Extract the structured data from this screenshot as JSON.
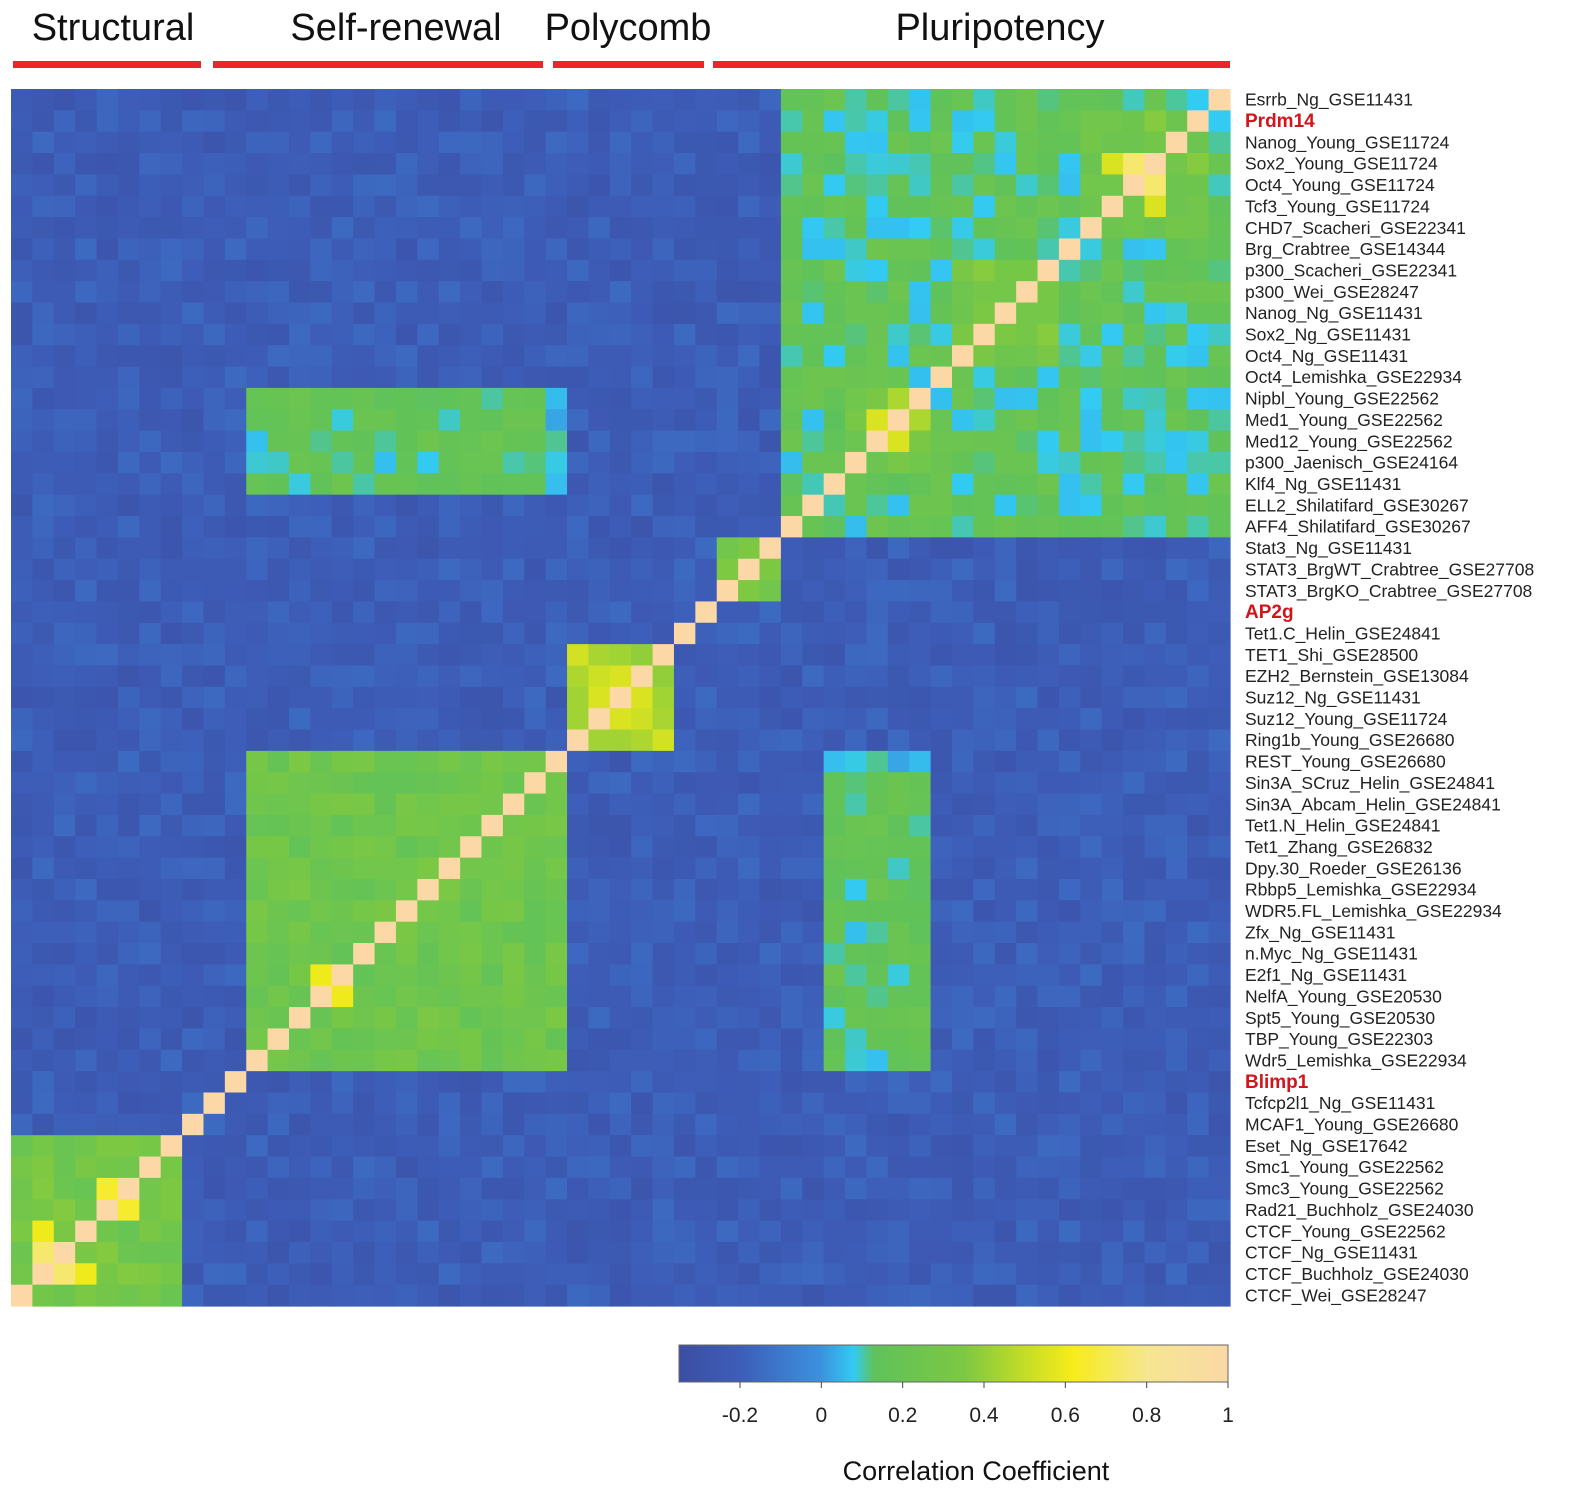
{
  "chart_data": {
    "type": "heatmap",
    "title": "",
    "groups": [
      {
        "label": "Structural",
        "color": "#e8262b"
      },
      {
        "label": "Self-renewal",
        "color": "#e8262b"
      },
      {
        "label": "Polycomb",
        "color": "#e8262b"
      },
      {
        "label": "Pluripotency",
        "color": "#e8262b"
      }
    ],
    "rows": [
      {
        "label": "Esrrb_Ng_GSE11431",
        "highlight": false
      },
      {
        "label": "Prdm14",
        "highlight": true
      },
      {
        "label": "Nanog_Young_GSE11724",
        "highlight": false
      },
      {
        "label": "Sox2_Young_GSE11724",
        "highlight": false
      },
      {
        "label": "Oct4_Young_GSE11724",
        "highlight": false
      },
      {
        "label": "Tcf3_Young_GSE11724",
        "highlight": false
      },
      {
        "label": "CHD7_Scacheri_GSE22341",
        "highlight": false
      },
      {
        "label": "Brg_Crabtree_GSE14344",
        "highlight": false
      },
      {
        "label": "p300_Scacheri_GSE22341",
        "highlight": false
      },
      {
        "label": "p300_Wei_GSE28247",
        "highlight": false
      },
      {
        "label": "Nanog_Ng_GSE11431",
        "highlight": false
      },
      {
        "label": "Sox2_Ng_GSE11431",
        "highlight": false
      },
      {
        "label": "Oct4_Ng_GSE11431",
        "highlight": false
      },
      {
        "label": "Oct4_Lemishka_GSE22934",
        "highlight": false
      },
      {
        "label": "Nipbl_Young_GSE22562",
        "highlight": false
      },
      {
        "label": "Med1_Young_GSE22562",
        "highlight": false
      },
      {
        "label": "Med12_Young_GSE22562",
        "highlight": false
      },
      {
        "label": "p300_Jaenisch_GSE24164",
        "highlight": false
      },
      {
        "label": "Klf4_Ng_GSE11431",
        "highlight": false
      },
      {
        "label": "ELL2_Shilatifard_GSE30267",
        "highlight": false
      },
      {
        "label": "AFF4_Shilatifard_GSE30267",
        "highlight": false
      },
      {
        "label": "Stat3_Ng_GSE11431",
        "highlight": false
      },
      {
        "label": "STAT3_BrgWT_Crabtree_GSE27708",
        "highlight": false
      },
      {
        "label": "STAT3_BrgKO_Crabtree_GSE27708",
        "highlight": false
      },
      {
        "label": "AP2g",
        "highlight": true
      },
      {
        "label": "Tet1.C_Helin_GSE24841",
        "highlight": false
      },
      {
        "label": "TET1_Shi_GSE28500",
        "highlight": false
      },
      {
        "label": "EZH2_Bernstein_GSE13084",
        "highlight": false
      },
      {
        "label": "Suz12_Ng_GSE11431",
        "highlight": false
      },
      {
        "label": "Suz12_Young_GSE11724",
        "highlight": false
      },
      {
        "label": "Ring1b_Young_GSE26680",
        "highlight": false
      },
      {
        "label": "REST_Young_GSE26680",
        "highlight": false
      },
      {
        "label": "Sin3A_SCruz_Helin_GSE24841",
        "highlight": false
      },
      {
        "label": "Sin3A_Abcam_Helin_GSE24841",
        "highlight": false
      },
      {
        "label": "Tet1.N_Helin_GSE24841",
        "highlight": false
      },
      {
        "label": "Tet1_Zhang_GSE26832",
        "highlight": false
      },
      {
        "label": "Dpy.30_Roeder_GSE26136",
        "highlight": false
      },
      {
        "label": "Rbbp5_Lemishka_GSE22934",
        "highlight": false
      },
      {
        "label": "WDR5.FL_Lemishka_GSE22934",
        "highlight": false
      },
      {
        "label": "Zfx_Ng_GSE11431",
        "highlight": false
      },
      {
        "label": "n.Myc_Ng_GSE11431",
        "highlight": false
      },
      {
        "label": "E2f1_Ng_GSE11431",
        "highlight": false
      },
      {
        "label": "NelfA_Young_GSE20530",
        "highlight": false
      },
      {
        "label": "Spt5_Young_GSE20530",
        "highlight": false
      },
      {
        "label": "TBP_Young_GSE22303",
        "highlight": false
      },
      {
        "label": "Wdr5_Lemishka_GSE22934",
        "highlight": false
      },
      {
        "label": "Blimp1",
        "highlight": true
      },
      {
        "label": "Tcfcp2l1_Ng_GSE11431",
        "highlight": false
      },
      {
        "label": "MCAF1_Young_GSE26680",
        "highlight": false
      },
      {
        "label": "Eset_Ng_GSE17642",
        "highlight": false
      },
      {
        "label": "Smc1_Young_GSE22562",
        "highlight": false
      },
      {
        "label": "Smc3_Young_GSE22562",
        "highlight": false
      },
      {
        "label": "Rad21_Buchholz_GSE24030",
        "highlight": false
      },
      {
        "label": "CTCF_Young_GSE22562",
        "highlight": false
      },
      {
        "label": "CTCF_Ng_GSE11431",
        "highlight": false
      },
      {
        "label": "CTCF_Buchholz_GSE24030",
        "highlight": false
      },
      {
        "label": "CTCF_Wei_GSE28247",
        "highlight": false
      }
    ],
    "value_range": [
      -0.35,
      1
    ],
    "background_value": -0.2,
    "blocks": [
      {
        "rows": [
          0,
          20
        ],
        "value": 0.15
      },
      {
        "rows": [
          1,
          6
        ],
        "value": 0.28
      },
      {
        "rows": [
          8,
          12
        ],
        "value": 0.3
      },
      {
        "rows": [
          14,
          17
        ],
        "value": 0.3
      },
      {
        "rows": [
          21,
          23
        ],
        "value": 0.3
      },
      {
        "rows": [
          26,
          30
        ],
        "value": 0.48
      },
      {
        "rows": [
          31,
          45
        ],
        "value": 0.25
      },
      {
        "rows": [
          49,
          56
        ],
        "value": 0.28
      }
    ],
    "block_links": [
      {
        "rows": [
          14,
          18
        ],
        "cols": [
          31,
          45
        ],
        "value": 0.1
      },
      {
        "rows": [
          32,
          44
        ],
        "cols": [
          14,
          18
        ],
        "value": 0.15
      }
    ],
    "hotspots": [
      {
        "row": 3,
        "col": 4,
        "value": 0.8
      },
      {
        "row": 4,
        "col": 3,
        "value": 0.75
      },
      {
        "row": 3,
        "col": 5,
        "value": 0.55
      },
      {
        "row": 15,
        "col": 16,
        "value": 0.55
      },
      {
        "row": 14,
        "col": 15,
        "value": 0.45
      },
      {
        "row": 27,
        "col": 28,
        "value": 0.55
      },
      {
        "row": 28,
        "col": 29,
        "value": 0.55
      },
      {
        "row": 41,
        "col": 42,
        "value": 0.6
      },
      {
        "row": 51,
        "col": 52,
        "value": 0.65
      },
      {
        "row": 54,
        "col": 55,
        "value": 0.75
      },
      {
        "row": 53,
        "col": 55,
        "value": 0.6
      }
    ],
    "diagonal_value": 1,
    "colorbar": {
      "title": "Correlation Coefficient",
      "ticks": [
        -0.2,
        0,
        0.2,
        0.4,
        0.6,
        0.8,
        1
      ],
      "tick_labels": [
        "-0.2",
        "0",
        "0.2",
        "0.4",
        "0.6",
        "0.8",
        "1"
      ],
      "stops": [
        {
          "value": -0.35,
          "color": "#3b4ea3"
        },
        {
          "value": -0.2,
          "color": "#3d5db8"
        },
        {
          "value": 0,
          "color": "#3b92df"
        },
        {
          "value": 0.08,
          "color": "#33cbf2"
        },
        {
          "value": 0.13,
          "color": "#5fc25a"
        },
        {
          "value": 0.35,
          "color": "#7cc843"
        },
        {
          "value": 0.5,
          "color": "#c4dd26"
        },
        {
          "value": 0.62,
          "color": "#f7ec1a"
        },
        {
          "value": 0.8,
          "color": "#f5e690"
        },
        {
          "value": 1,
          "color": "#fbd8a6"
        }
      ]
    }
  }
}
